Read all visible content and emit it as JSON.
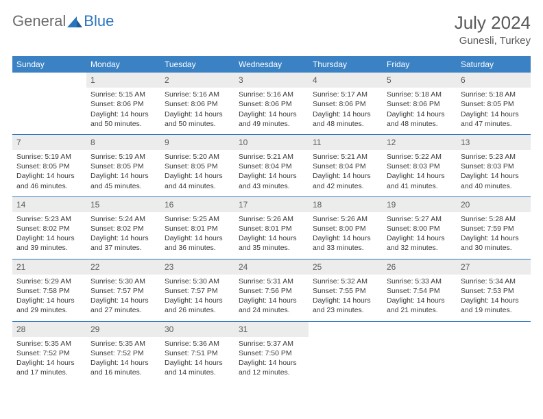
{
  "logo": {
    "general": "General",
    "blue": "Blue"
  },
  "title": "July 2024",
  "location": "Gunesli, Turkey",
  "colors": {
    "header_bg": "#3b82c4",
    "header_text": "#ffffff",
    "daynum_bg": "#ececec",
    "border": "#2a74bd",
    "text": "#3a3a3a",
    "title_text": "#595959"
  },
  "day_headers": [
    "Sunday",
    "Monday",
    "Tuesday",
    "Wednesday",
    "Thursday",
    "Friday",
    "Saturday"
  ],
  "weeks": [
    {
      "nums": [
        "",
        "1",
        "2",
        "3",
        "4",
        "5",
        "6"
      ],
      "cells": [
        "",
        "Sunrise: 5:15 AM\nSunset: 8:06 PM\nDaylight: 14 hours and 50 minutes.",
        "Sunrise: 5:16 AM\nSunset: 8:06 PM\nDaylight: 14 hours and 50 minutes.",
        "Sunrise: 5:16 AM\nSunset: 8:06 PM\nDaylight: 14 hours and 49 minutes.",
        "Sunrise: 5:17 AM\nSunset: 8:06 PM\nDaylight: 14 hours and 48 minutes.",
        "Sunrise: 5:18 AM\nSunset: 8:06 PM\nDaylight: 14 hours and 48 minutes.",
        "Sunrise: 5:18 AM\nSunset: 8:05 PM\nDaylight: 14 hours and 47 minutes."
      ]
    },
    {
      "nums": [
        "7",
        "8",
        "9",
        "10",
        "11",
        "12",
        "13"
      ],
      "cells": [
        "Sunrise: 5:19 AM\nSunset: 8:05 PM\nDaylight: 14 hours and 46 minutes.",
        "Sunrise: 5:19 AM\nSunset: 8:05 PM\nDaylight: 14 hours and 45 minutes.",
        "Sunrise: 5:20 AM\nSunset: 8:05 PM\nDaylight: 14 hours and 44 minutes.",
        "Sunrise: 5:21 AM\nSunset: 8:04 PM\nDaylight: 14 hours and 43 minutes.",
        "Sunrise: 5:21 AM\nSunset: 8:04 PM\nDaylight: 14 hours and 42 minutes.",
        "Sunrise: 5:22 AM\nSunset: 8:03 PM\nDaylight: 14 hours and 41 minutes.",
        "Sunrise: 5:23 AM\nSunset: 8:03 PM\nDaylight: 14 hours and 40 minutes."
      ]
    },
    {
      "nums": [
        "14",
        "15",
        "16",
        "17",
        "18",
        "19",
        "20"
      ],
      "cells": [
        "Sunrise: 5:23 AM\nSunset: 8:02 PM\nDaylight: 14 hours and 39 minutes.",
        "Sunrise: 5:24 AM\nSunset: 8:02 PM\nDaylight: 14 hours and 37 minutes.",
        "Sunrise: 5:25 AM\nSunset: 8:01 PM\nDaylight: 14 hours and 36 minutes.",
        "Sunrise: 5:26 AM\nSunset: 8:01 PM\nDaylight: 14 hours and 35 minutes.",
        "Sunrise: 5:26 AM\nSunset: 8:00 PM\nDaylight: 14 hours and 33 minutes.",
        "Sunrise: 5:27 AM\nSunset: 8:00 PM\nDaylight: 14 hours and 32 minutes.",
        "Sunrise: 5:28 AM\nSunset: 7:59 PM\nDaylight: 14 hours and 30 minutes."
      ]
    },
    {
      "nums": [
        "21",
        "22",
        "23",
        "24",
        "25",
        "26",
        "27"
      ],
      "cells": [
        "Sunrise: 5:29 AM\nSunset: 7:58 PM\nDaylight: 14 hours and 29 minutes.",
        "Sunrise: 5:30 AM\nSunset: 7:57 PM\nDaylight: 14 hours and 27 minutes.",
        "Sunrise: 5:30 AM\nSunset: 7:57 PM\nDaylight: 14 hours and 26 minutes.",
        "Sunrise: 5:31 AM\nSunset: 7:56 PM\nDaylight: 14 hours and 24 minutes.",
        "Sunrise: 5:32 AM\nSunset: 7:55 PM\nDaylight: 14 hours and 23 minutes.",
        "Sunrise: 5:33 AM\nSunset: 7:54 PM\nDaylight: 14 hours and 21 minutes.",
        "Sunrise: 5:34 AM\nSunset: 7:53 PM\nDaylight: 14 hours and 19 minutes."
      ]
    },
    {
      "nums": [
        "28",
        "29",
        "30",
        "31",
        "",
        "",
        ""
      ],
      "cells": [
        "Sunrise: 5:35 AM\nSunset: 7:52 PM\nDaylight: 14 hours and 17 minutes.",
        "Sunrise: 5:35 AM\nSunset: 7:52 PM\nDaylight: 14 hours and 16 minutes.",
        "Sunrise: 5:36 AM\nSunset: 7:51 PM\nDaylight: 14 hours and 14 minutes.",
        "Sunrise: 5:37 AM\nSunset: 7:50 PM\nDaylight: 14 hours and 12 minutes.",
        "",
        "",
        ""
      ]
    }
  ]
}
